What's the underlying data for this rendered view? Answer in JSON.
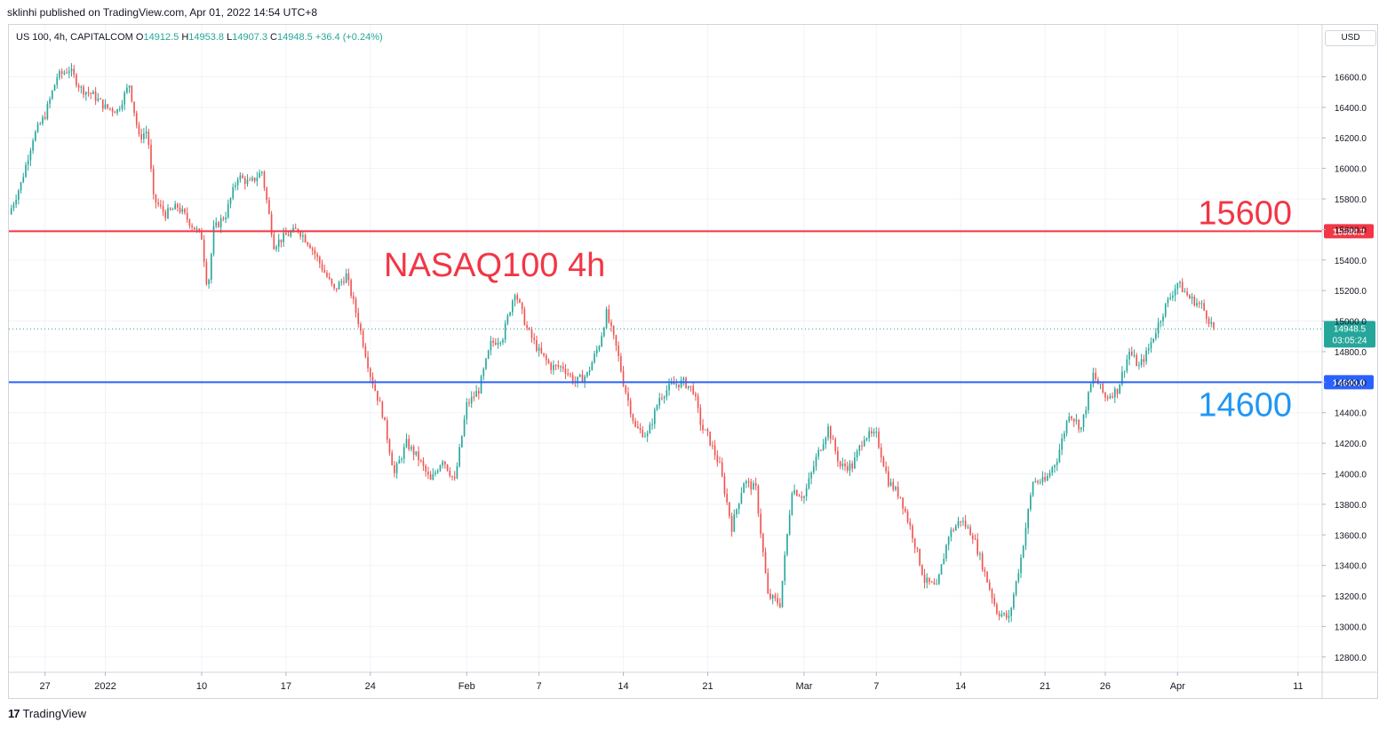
{
  "header": {
    "published_line": "sklinhi published on TradingView.com, Apr 01, 2022 14:54 UTC+8"
  },
  "legend": {
    "symbol": "US 100, 4h, CAPITALCOM",
    "o_label": "O",
    "o_value": "14912.5",
    "h_label": "H",
    "h_value": "14953.8",
    "l_label": "L",
    "l_value": "14907.3",
    "c_label": "C",
    "c_value": "14948.5",
    "change": "+36.4 (+0.24%)"
  },
  "currency_button": "USD",
  "footer": {
    "brand": "TradingView"
  },
  "colors": {
    "up": "#26a69a",
    "down": "#ef5350",
    "line_red": "#f23645",
    "line_blue": "#2962ff",
    "text_red": "#f23645",
    "text_blue": "#2196f3"
  },
  "chart_data": {
    "type": "candlestick",
    "title": "NASAQ100 4h",
    "ylim": [
      12700,
      16940
    ],
    "y_ticks": [
      "12800.0",
      "13000.0",
      "13200.0",
      "13400.0",
      "13600.0",
      "13800.0",
      "14000.0",
      "14200.0",
      "14400.0",
      "14600.0",
      "14800.0",
      "15000.0",
      "15200.0",
      "15400.0",
      "15600.0",
      "15800.0",
      "16000.0",
      "16200.0",
      "16400.0",
      "16600.0"
    ],
    "x_tick_labels": [
      {
        "label": "27",
        "day": 2
      },
      {
        "label": "2022",
        "day": 7
      },
      {
        "label": "10",
        "day": 15
      },
      {
        "label": "17",
        "day": 22
      },
      {
        "label": "24",
        "day": 29
      },
      {
        "label": "Feb",
        "day": 37
      },
      {
        "label": "7",
        "day": 43
      },
      {
        "label": "14",
        "day": 50
      },
      {
        "label": "21",
        "day": 57
      },
      {
        "label": "Mar",
        "day": 65
      },
      {
        "label": "7",
        "day": 71
      },
      {
        "label": "14",
        "day": 78
      },
      {
        "label": "21",
        "day": 85
      },
      {
        "label": "26",
        "day": 90
      },
      {
        "label": "Apr",
        "day": 96
      },
      {
        "label": "11",
        "day": 106
      }
    ],
    "x_range_days": [
      -1,
      108
    ],
    "horizontal_lines": [
      {
        "value": 15588.3,
        "label": "15588.3",
        "annotation": "15600",
        "color": "red"
      },
      {
        "value": 14600.0,
        "label": "14600.0",
        "annotation": "14600",
        "color": "blue"
      }
    ],
    "last_price": {
      "value": 14948.5,
      "label": "14948.5",
      "countdown": "03:05:24"
    },
    "close_path": [
      [
        -1,
        15700
      ],
      [
        0,
        15900
      ],
      [
        1,
        16200
      ],
      [
        2,
        16350
      ],
      [
        3,
        16600
      ],
      [
        4,
        16650
      ],
      [
        5,
        16520
      ],
      [
        6,
        16480
      ],
      [
        7,
        16400
      ],
      [
        8,
        16380
      ],
      [
        9,
        16550
      ],
      [
        9.8,
        16200
      ],
      [
        10.5,
        16250
      ],
      [
        11,
        15800
      ],
      [
        12,
        15700
      ],
      [
        13,
        15750
      ],
      [
        14,
        15650
      ],
      [
        15,
        15550
      ],
      [
        15.5,
        15200
      ],
      [
        16,
        15600
      ],
      [
        17,
        15700
      ],
      [
        18,
        15950
      ],
      [
        19,
        15900
      ],
      [
        20,
        15980
      ],
      [
        21,
        15500
      ],
      [
        22,
        15560
      ],
      [
        23,
        15600
      ],
      [
        24,
        15500
      ],
      [
        25,
        15350
      ],
      [
        26,
        15200
      ],
      [
        27,
        15300
      ],
      [
        28,
        15000
      ],
      [
        29,
        14650
      ],
      [
        30,
        14400
      ],
      [
        31,
        14000
      ],
      [
        32,
        14200
      ],
      [
        33,
        14100
      ],
      [
        34,
        13950
      ],
      [
        35,
        14100
      ],
      [
        36,
        13950
      ],
      [
        37,
        14450
      ],
      [
        38,
        14550
      ],
      [
        39,
        14850
      ],
      [
        40,
        14900
      ],
      [
        41,
        15200
      ],
      [
        42,
        14950
      ],
      [
        43,
        14800
      ],
      [
        44,
        14700
      ],
      [
        45,
        14700
      ],
      [
        46,
        14600
      ],
      [
        47,
        14650
      ],
      [
        48,
        14850
      ],
      [
        48.6,
        15050
      ],
      [
        49.5,
        14800
      ],
      [
        50,
        14600
      ],
      [
        51,
        14300
      ],
      [
        52,
        14250
      ],
      [
        53,
        14500
      ],
      [
        54,
        14580
      ],
      [
        55,
        14600
      ],
      [
        55.8,
        14550
      ],
      [
        56.5,
        14300
      ],
      [
        57,
        14250
      ],
      [
        58,
        14050
      ],
      [
        59,
        13650
      ],
      [
        60,
        13950
      ],
      [
        61,
        13900
      ],
      [
        62,
        13200
      ],
      [
        63,
        13150
      ],
      [
        64,
        13900
      ],
      [
        65,
        13850
      ],
      [
        66,
        14100
      ],
      [
        67,
        14300
      ],
      [
        68,
        14050
      ],
      [
        69,
        14050
      ],
      [
        70,
        14250
      ],
      [
        71,
        14250
      ],
      [
        72,
        13950
      ],
      [
        73,
        13850
      ],
      [
        74,
        13600
      ],
      [
        75,
        13300
      ],
      [
        76,
        13250
      ],
      [
        77,
        13600
      ],
      [
        78,
        13700
      ],
      [
        79,
        13600
      ],
      [
        80,
        13350
      ],
      [
        81,
        13100
      ],
      [
        82,
        13050
      ],
      [
        83,
        13450
      ],
      [
        84,
        13950
      ],
      [
        85,
        13950
      ],
      [
        86,
        14100
      ],
      [
        87,
        14400
      ],
      [
        88,
        14300
      ],
      [
        89,
        14650
      ],
      [
        90,
        14500
      ],
      [
        91,
        14550
      ],
      [
        92,
        14800
      ],
      [
        92.8,
        14700
      ],
      [
        93.5,
        14800
      ],
      [
        94,
        14900
      ],
      [
        95,
        15100
      ],
      [
        96,
        15250
      ],
      [
        97,
        15150
      ],
      [
        98,
        15100
      ],
      [
        99,
        14950
      ]
    ]
  }
}
